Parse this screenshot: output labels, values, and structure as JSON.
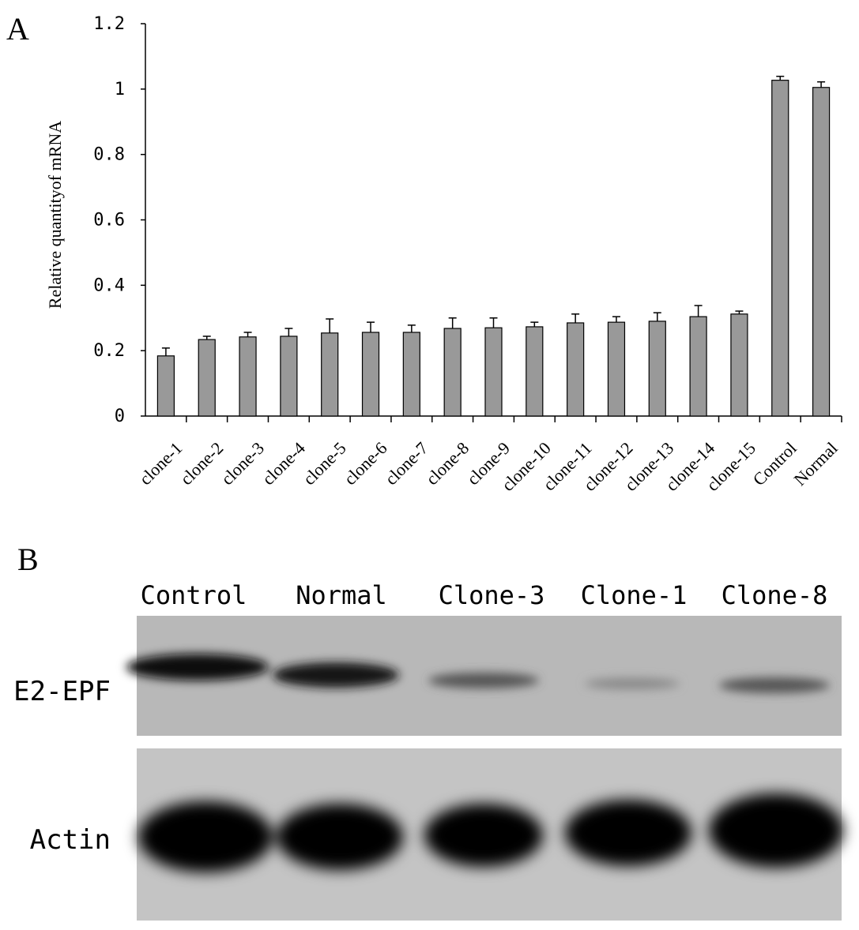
{
  "chart_data": {
    "type": "bar",
    "panel_label": "A",
    "y_label": "Relative quantityof mRNA",
    "categories": [
      "clone-1",
      "clone-2",
      "clone-3",
      "clone-4",
      "clone-5",
      "clone-6",
      "clone-7",
      "clone-8",
      "clone-9",
      "clone-10",
      "clone-11",
      "clone-12",
      "clone-13",
      "clone-14",
      "clone-15",
      "Control",
      "Normal"
    ],
    "values": [
      0.184,
      0.234,
      0.242,
      0.244,
      0.254,
      0.256,
      0.256,
      0.268,
      0.27,
      0.273,
      0.285,
      0.287,
      0.29,
      0.304,
      0.312,
      1.027,
      1.005
    ],
    "errors": [
      0.024,
      0.01,
      0.014,
      0.024,
      0.043,
      0.031,
      0.022,
      0.032,
      0.03,
      0.014,
      0.027,
      0.017,
      0.026,
      0.034,
      0.009,
      0.012,
      0.017
    ],
    "color": "#999999",
    "ylim": [
      0,
      1.2
    ],
    "yticks": [
      0,
      0.2,
      0.4,
      0.6,
      0.8,
      1,
      1.2
    ],
    "grid": false
  },
  "blot": {
    "panel_label": "B",
    "lanes": [
      "Control",
      "Normal",
      "Clone-3",
      "Clone-1",
      "Clone-8"
    ],
    "rows": [
      "E2-EPF",
      "Actin"
    ]
  }
}
